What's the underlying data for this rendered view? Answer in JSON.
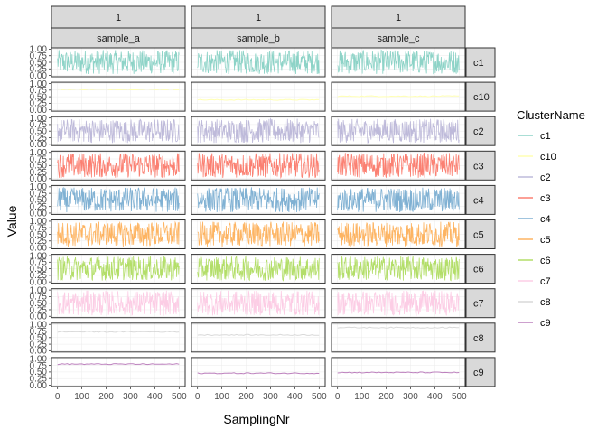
{
  "chart_data": {
    "type": "line",
    "title": "",
    "xlabel": "SamplingNr",
    "ylabel": "Value",
    "xlim": [
      0,
      500
    ],
    "ylim": [
      0,
      1
    ],
    "x_ticks": [
      0,
      100,
      200,
      300,
      400,
      500
    ],
    "y_ticks": [
      0,
      0.25,
      0.5,
      0.75,
      1.0
    ],
    "x_tick_labels": [
      "0",
      "100",
      "200",
      "300",
      "400",
      "500"
    ],
    "y_tick_labels": [
      "0.00",
      "0.25",
      "0.50",
      "0.75",
      "1.00"
    ],
    "facet_top_labels": [
      "1",
      "1",
      "1"
    ],
    "facet_columns": [
      "sample_a",
      "sample_b",
      "sample_c"
    ],
    "facet_rows": [
      "c1",
      "c10",
      "c2",
      "c3",
      "c4",
      "c5",
      "c6",
      "c7",
      "c8",
      "c9"
    ],
    "legend": {
      "title": "ClusterName",
      "position": "right",
      "entries": [
        "c1",
        "c10",
        "c2",
        "c3",
        "c4",
        "c5",
        "c6",
        "c7",
        "c8",
        "c9"
      ]
    },
    "colors": {
      "c1": "#8DD3C7",
      "c10": "#FFFFB3",
      "c2": "#BEBADA",
      "c3": "#FB8072",
      "c4": "#80B1D3",
      "c5": "#FDB462",
      "c6": "#B3DE69",
      "c7": "#FCCDE5",
      "c8": "#D9D9D9",
      "c9": "#BC80BD"
    },
    "series": [
      {
        "name": "c1",
        "kind": "noise",
        "low": 0.05,
        "high": 0.97
      },
      {
        "name": "c10",
        "kind": "constant",
        "values_by_sample": {
          "sample_a": 0.78,
          "sample_b": 0.38,
          "sample_c": 0.52
        }
      },
      {
        "name": "c2",
        "kind": "noise",
        "low": 0.05,
        "high": 0.97
      },
      {
        "name": "c3",
        "kind": "noise",
        "low": 0.03,
        "high": 0.98
      },
      {
        "name": "c4",
        "kind": "noise",
        "low": 0.03,
        "high": 0.98
      },
      {
        "name": "c5",
        "kind": "noise",
        "low": 0.03,
        "high": 0.98
      },
      {
        "name": "c6",
        "kind": "noise",
        "low": 0.05,
        "high": 0.98
      },
      {
        "name": "c7",
        "kind": "noise",
        "low": 0.03,
        "high": 0.98
      },
      {
        "name": "c8",
        "kind": "constant",
        "values_by_sample": {
          "sample_a": 0.72,
          "sample_b": 0.6,
          "sample_c": 0.88
        }
      },
      {
        "name": "c9",
        "kind": "constant",
        "values_by_sample": {
          "sample_a": 0.8,
          "sample_b": 0.45,
          "sample_c": 0.48
        }
      }
    ]
  }
}
